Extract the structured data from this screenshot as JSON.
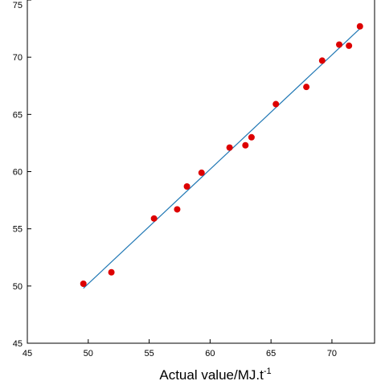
{
  "chart_data": {
    "type": "scatter",
    "title": "",
    "xlabel": "Actual value/MJ.t",
    "xlabel_superscript": "-1",
    "ylabel": "",
    "xlim": [
      45,
      73.5
    ],
    "ylim": [
      45,
      75
    ],
    "xticks": [
      "45",
      "50",
      "55",
      "60",
      "65",
      "70"
    ],
    "yticks": [
      "45",
      "50",
      "55",
      "60",
      "65",
      "70",
      "75"
    ],
    "grid": false,
    "legend": "none",
    "colors": {
      "points": "#dd0000",
      "fit_line": "#1f77b4",
      "axis": "#000000"
    },
    "series": [
      {
        "type": "scatter",
        "x": [
          49.6,
          51.9,
          55.4,
          57.3,
          58.1,
          59.3,
          61.6,
          62.9,
          63.4,
          65.4,
          67.9,
          69.2,
          70.6,
          71.4,
          72.3
        ],
        "y": [
          50.2,
          51.2,
          55.9,
          56.7,
          58.7,
          59.9,
          62.1,
          62.3,
          63.0,
          65.9,
          67.4,
          69.7,
          71.1,
          71.0,
          72.7
        ]
      },
      {
        "type": "line",
        "x": [
          49.6,
          72.3
        ],
        "y": [
          49.8,
          72.5
        ]
      }
    ]
  }
}
